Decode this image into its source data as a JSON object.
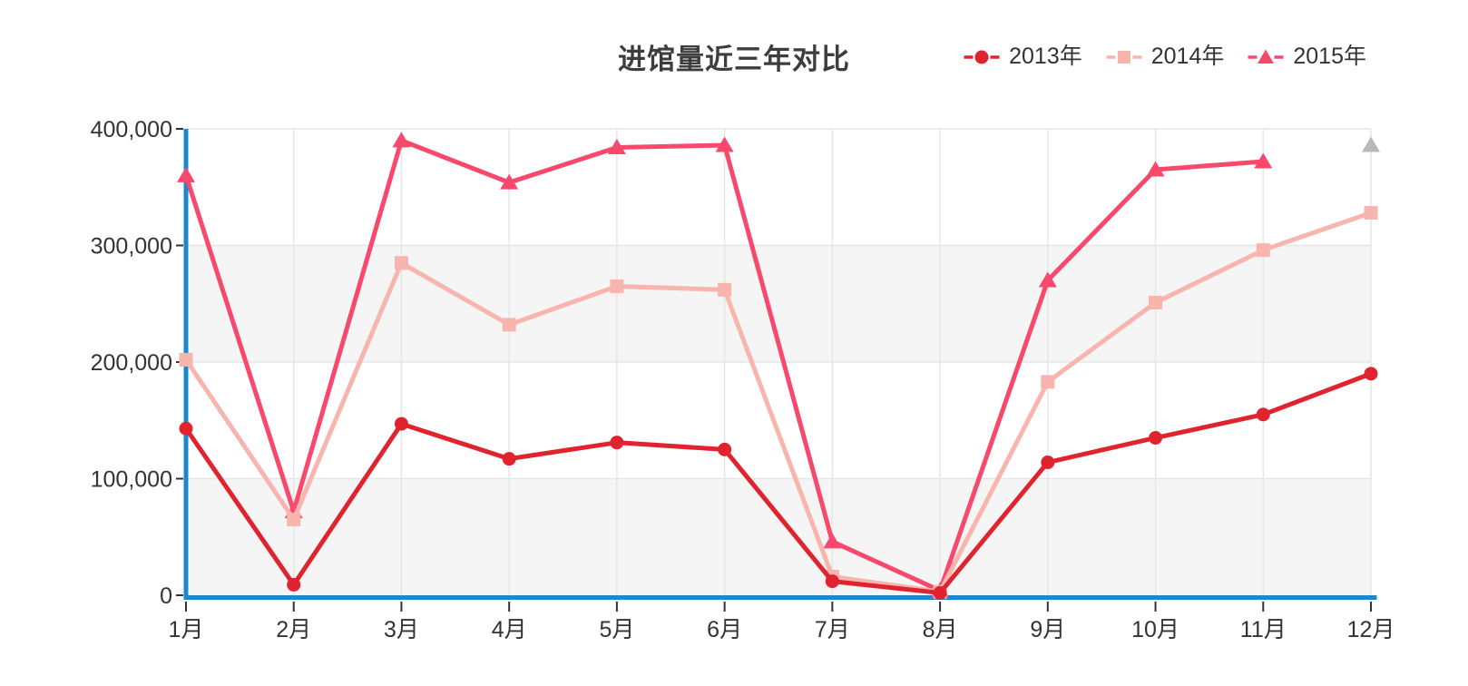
{
  "chart_data": {
    "type": "line",
    "title": "进馆量近三年对比",
    "categories": [
      "1月",
      "2月",
      "3月",
      "4月",
      "5月",
      "6月",
      "7月",
      "8月",
      "9月",
      "10月",
      "11月",
      "12月"
    ],
    "series": [
      {
        "name": "2013年",
        "symbol": "circle",
        "color": "#e0242f",
        "values": [
          143000,
          9000,
          147000,
          117000,
          131000,
          125000,
          12000,
          2000,
          114000,
          135000,
          155000,
          190000
        ]
      },
      {
        "name": "2014年",
        "symbol": "square",
        "color": "#f7b5ad",
        "values": [
          202000,
          65000,
          285000,
          232000,
          265000,
          262000,
          16000,
          3000,
          183000,
          251000,
          296000,
          328000
        ]
      },
      {
        "name": "2015年",
        "symbol": "triangle",
        "color": "#f8486c",
        "values": [
          360000,
          72000,
          390000,
          354000,
          384000,
          386000,
          46000,
          4000,
          270000,
          365000,
          372000,
          386000
        ],
        "isolated_last_point": true,
        "isolated_point_color": "#b9b9b9",
        "note": "December point is a detached gray triangle with no connecting line"
      }
    ],
    "ylim": [
      0,
      400000
    ],
    "ytick_interval": 100000,
    "ytick_labels": [
      "0",
      "100,000",
      "200,000",
      "300,000",
      "400,000"
    ],
    "xlabel": "",
    "ylabel": "",
    "grid": "light vertical gridline per month, horizontal gridlines every 100,000, alternating light-gray horizontal bands",
    "legend_position": "top-right",
    "legend_order": [
      "2013年",
      "2014年",
      "2015年"
    ],
    "colors": {
      "axis_line": "#1b87cd",
      "grid_line": "#e6e6e6",
      "band_fill": "#f5f5f5",
      "tick": "#333333",
      "axis_text": "#333333",
      "title_text": "#3d3d3d"
    }
  }
}
